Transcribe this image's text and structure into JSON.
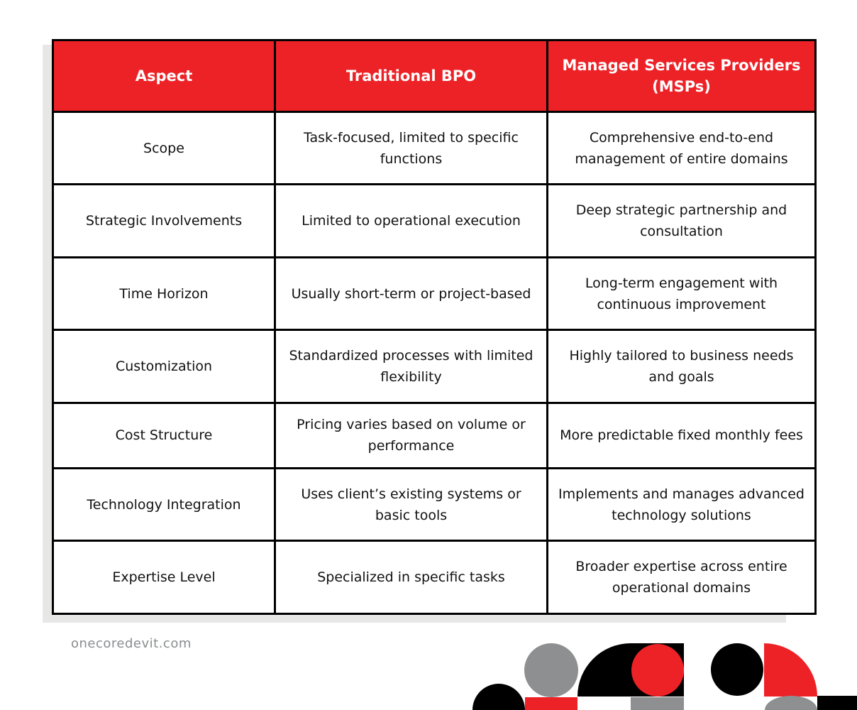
{
  "table": {
    "headers": [
      "Aspect",
      "Traditional BPO",
      "Managed Services Providers (MSPs)"
    ],
    "rows": [
      [
        "Scope",
        "Task-focused, limited to specific functions",
        "Comprehensive end-to-end management of entire domains"
      ],
      [
        "Strategic Involvements",
        "Limited to operational execution",
        "Deep strategic partnership and consultation"
      ],
      [
        "Time Horizon",
        "Usually short-term or project-based",
        "Long-term engagement with continuous improvement"
      ],
      [
        "Customization",
        "Standardized processes with limited flexibility",
        "Highly tailored to business needs and goals"
      ],
      [
        "Cost Structure",
        "Pricing varies based on volume or performance",
        "More predictable fixed monthly fees"
      ],
      [
        "Technology Integration",
        "Uses client’s existing systems or basic tools",
        "Implements and manages advanced technology solutions"
      ],
      [
        "Expertise Level",
        "Specialized in specific tasks",
        "Broader expertise across entire operational domains"
      ]
    ]
  },
  "footer": {
    "website": "onecoredevit.com"
  },
  "colors": {
    "header_red": "#ed2227",
    "border": "#000000",
    "shadow_gray": "#e7e8e6",
    "shape_gray": "#8e8f91",
    "shape_red": "#ed2227",
    "shape_black": "#000000"
  }
}
